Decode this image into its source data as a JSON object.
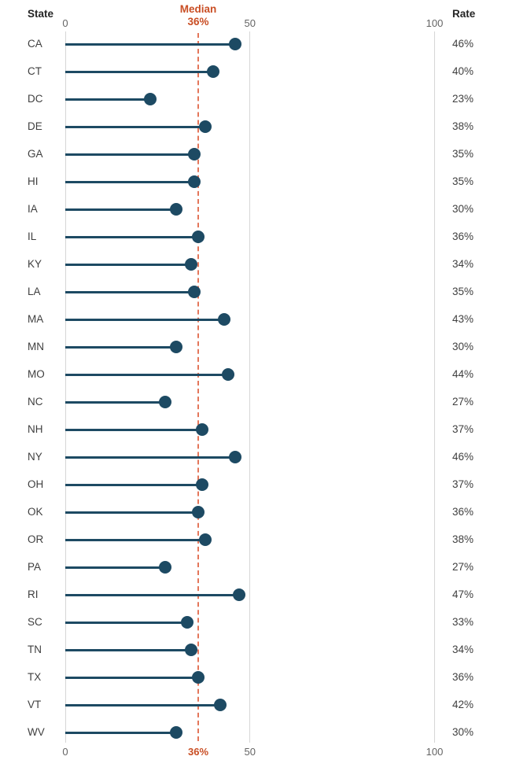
{
  "chart_data": {
    "type": "lollipop",
    "state_header": "State",
    "rate_header": "Rate",
    "median": {
      "label": "Median",
      "value": 36,
      "value_label": "36%"
    },
    "axis": {
      "range": [
        0,
        100
      ],
      "ticks": [
        0,
        50,
        100
      ],
      "tick_labels": [
        "0",
        "50",
        "100"
      ],
      "grid": true
    },
    "rows": [
      {
        "state": "CA",
        "rate": 46,
        "label": "46%"
      },
      {
        "state": "CT",
        "rate": 40,
        "label": "40%"
      },
      {
        "state": "DC",
        "rate": 23,
        "label": "23%"
      },
      {
        "state": "DE",
        "rate": 38,
        "label": "38%"
      },
      {
        "state": "GA",
        "rate": 35,
        "label": "35%"
      },
      {
        "state": "HI",
        "rate": 35,
        "label": "35%"
      },
      {
        "state": "IA",
        "rate": 30,
        "label": "30%"
      },
      {
        "state": "IL",
        "rate": 36,
        "label": "36%"
      },
      {
        "state": "KY",
        "rate": 34,
        "label": "34%"
      },
      {
        "state": "LA",
        "rate": 35,
        "label": "35%"
      },
      {
        "state": "MA",
        "rate": 43,
        "label": "43%"
      },
      {
        "state": "MN",
        "rate": 30,
        "label": "30%"
      },
      {
        "state": "MO",
        "rate": 44,
        "label": "44%"
      },
      {
        "state": "NC",
        "rate": 27,
        "label": "27%"
      },
      {
        "state": "NH",
        "rate": 37,
        "label": "37%"
      },
      {
        "state": "NY",
        "rate": 46,
        "label": "46%"
      },
      {
        "state": "OH",
        "rate": 37,
        "label": "37%"
      },
      {
        "state": "OK",
        "rate": 36,
        "label": "36%"
      },
      {
        "state": "OR",
        "rate": 38,
        "label": "38%"
      },
      {
        "state": "PA",
        "rate": 27,
        "label": "27%"
      },
      {
        "state": "RI",
        "rate": 47,
        "label": "47%"
      },
      {
        "state": "SC",
        "rate": 33,
        "label": "33%"
      },
      {
        "state": "TN",
        "rate": 34,
        "label": "34%"
      },
      {
        "state": "TX",
        "rate": 36,
        "label": "36%"
      },
      {
        "state": "VT",
        "rate": 42,
        "label": "42%"
      },
      {
        "state": "WV",
        "rate": 30,
        "label": "30%"
      }
    ],
    "colors": {
      "lollipop": "#1d4a63",
      "median_line": "#e4765a",
      "median_text": "#c94e24",
      "grid": "#d6d6d6",
      "tick_text": "#646464",
      "label_text": "#3f3f3f",
      "header_text": "#242424"
    }
  }
}
